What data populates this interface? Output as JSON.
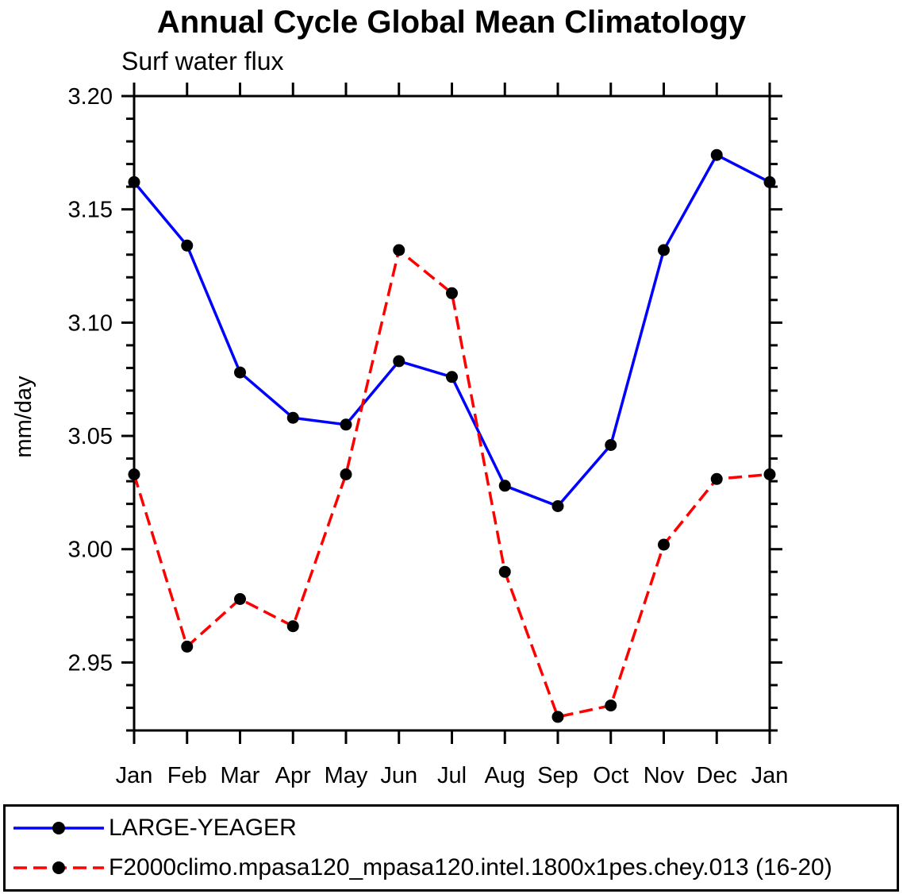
{
  "page": {
    "background": "#ffffff",
    "text_color": "#000000"
  },
  "chart_data": {
    "type": "line",
    "title": "Annual Cycle Global Mean Climatology",
    "subtitle": "Surf water flux",
    "ylabel": "mm/day",
    "xlabel": "",
    "categories": [
      "Jan",
      "Feb",
      "Mar",
      "Apr",
      "May",
      "Jun",
      "Jul",
      "Aug",
      "Sep",
      "Oct",
      "Nov",
      "Dec",
      "Jan"
    ],
    "ylim": [
      2.92,
      3.2
    ],
    "y_major_ticks": [
      2.95,
      3.0,
      3.05,
      3.1,
      3.15,
      3.2
    ],
    "y_tick_labels": [
      "2.95",
      "3.00",
      "3.05",
      "3.10",
      "3.15",
      "3.20"
    ],
    "y_minor_step": 0.01,
    "grid": false,
    "legend_position": "bottom",
    "frame_color": "#000000",
    "series": [
      {
        "name": "LARGE-YEAGER",
        "color": "#0000ff",
        "style": "solid",
        "marker": "circle",
        "marker_color": "#000000",
        "values": [
          3.162,
          3.134,
          3.078,
          3.058,
          3.055,
          3.083,
          3.076,
          3.028,
          3.019,
          3.046,
          3.132,
          3.174,
          3.162
        ]
      },
      {
        "name": "F2000climo.mpasa120_mpasa120.intel.1800x1pes.chey.013 (16-20)",
        "color": "#ff0000",
        "style": "dashed",
        "marker": "circle",
        "marker_color": "#000000",
        "values": [
          3.033,
          2.957,
          2.978,
          2.966,
          3.033,
          3.132,
          3.113,
          2.99,
          2.926,
          2.931,
          3.002,
          3.031,
          3.033
        ]
      }
    ]
  }
}
